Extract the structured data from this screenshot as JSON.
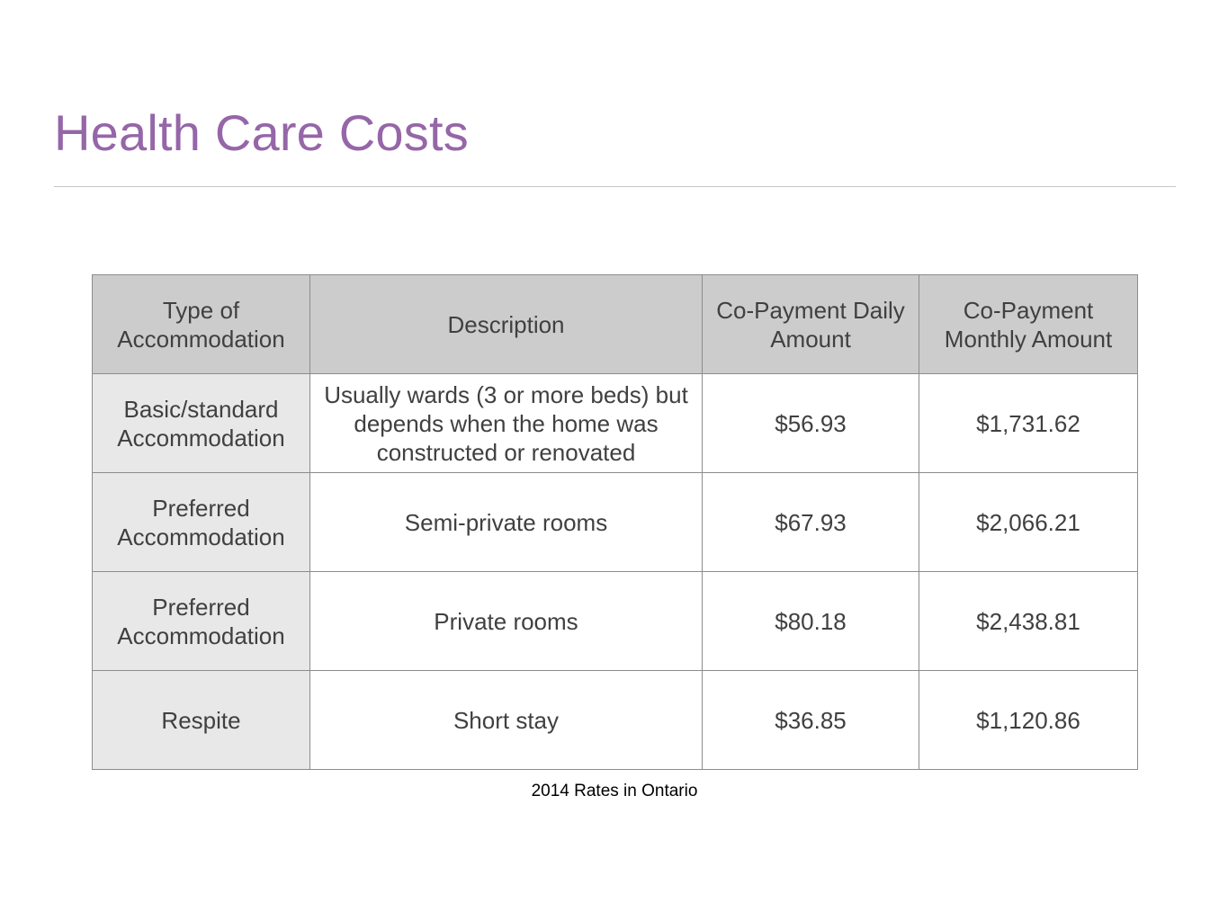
{
  "slide": {
    "title": "Health Care Costs",
    "caption": "2014 Rates in Ontario"
  },
  "table": {
    "headers": [
      "Type of Accommodation",
      "Description",
      "Co-Payment Daily Amount",
      "Co-Payment Monthly Amount"
    ],
    "rows": [
      {
        "type": "Basic/standard Accommodation",
        "description": "Usually wards (3 or more beds) but depends when the home was constructed or renovated",
        "daily": "$56.93",
        "monthly": "$1,731.62"
      },
      {
        "type": "Preferred Accommodation",
        "description": "Semi-private rooms",
        "daily": "$67.93",
        "monthly": "$2,066.21"
      },
      {
        "type": "Preferred Accommodation",
        "description": "Private rooms",
        "daily": "$80.18",
        "monthly": "$2,438.81"
      },
      {
        "type": "Respite",
        "description": "Short stay",
        "daily": "$36.85",
        "monthly": "$1,120.86"
      }
    ]
  },
  "colors": {
    "title": "#9566a8",
    "header_bg": "#cccccc",
    "first_column_bg": "#e8e8e8",
    "border": "#8c8c8c",
    "text": "#404040"
  }
}
